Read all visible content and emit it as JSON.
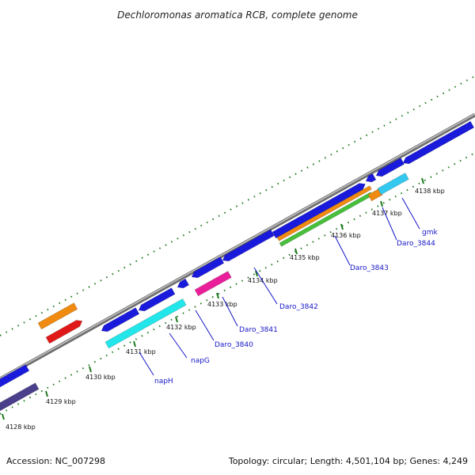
{
  "title": "Dechloromonas aromatica RCB, complete genome",
  "footer": {
    "accession": "Accession: NC_007298",
    "summary": "Topology: circular; Length: 4,501,104 bp; Genes: 4,249"
  },
  "kbp_labels": [
    "4128 kbp",
    "4129 kbp",
    "4130 kbp",
    "4131 kbp",
    "4132 kbp",
    "4133 kbp",
    "4134 kbp",
    "4135 kbp",
    "4136 kbp",
    "4137 kbp",
    "4138 kbp"
  ],
  "gene_labels": [
    "napH",
    "napG",
    "Daro_3840",
    "Daro_3841",
    "Daro_3842",
    "Daro_3843",
    "Daro_3844",
    "gmk"
  ],
  "colors": {
    "cds_blue": "#1a1adc",
    "cds_dark": "#4a3f8a",
    "cyan": "#22e6ea",
    "light_blue": "#33c8f0",
    "magenta": "#ea1e9a",
    "orange": "#f08a10",
    "red": "#e01818",
    "green": "#46c03a",
    "backbone": "#8c8c8c",
    "tick": "#1f7a1f",
    "label": "#1515c8"
  }
}
